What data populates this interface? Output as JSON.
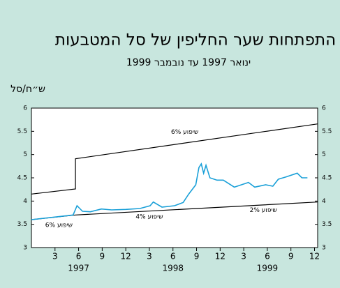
{
  "chart_data": {
    "type": "line",
    "title": "התפתחות שער החליפין של סל המטבעות",
    "subtitle": "ינואר 1997 עד נובמבר 1999",
    "ylabel": "ש״ח/סל",
    "xlim": [
      0,
      36.4
    ],
    "ylim": [
      3,
      6
    ],
    "y2lim": [
      3,
      6
    ],
    "xticks": [
      3,
      6,
      9,
      12,
      {
        "value": 15,
        "label": "3"
      },
      {
        "value": 18,
        "label": "6"
      },
      {
        "value": 21,
        "label": "9"
      },
      {
        "value": 24,
        "label": "12"
      },
      {
        "value": 27,
        "label": "3"
      },
      {
        "value": 30,
        "label": "6"
      },
      {
        "value": 33,
        "label": "9"
      },
      {
        "value": 36,
        "label": "12"
      }
    ],
    "yticks": [
      3,
      3.5,
      4,
      4.5,
      5,
      5.5,
      6
    ],
    "y2ticks": [
      3,
      3.5,
      4,
      4.5,
      5,
      5.5,
      6
    ],
    "year_groups": [
      {
        "label": "1997",
        "from": 0,
        "to": 12
      },
      {
        "label": "1998",
        "from": 12,
        "to": 24
      },
      {
        "label": "1999",
        "from": 24,
        "to": 36
      }
    ],
    "series": [
      {
        "color": "#000000",
        "x": [
          0,
          5.6,
          5.6,
          36.4
        ],
        "values": [
          4.15,
          4.26,
          4.91,
          5.66
        ]
      },
      {
        "color": "#000000",
        "x": [
          0,
          5.6,
          36.4
        ],
        "values": [
          3.6,
          3.7,
          3.98
        ]
      },
      {
        "color": "#1aa0d8",
        "x": [
          0,
          5.3,
          5.8,
          6.5,
          7.5,
          8.9,
          10.2,
          12,
          13.8,
          15.1,
          15.5,
          16.6,
          18.2,
          19.3,
          20,
          20.9,
          21.3,
          21.6,
          21.9,
          22.2,
          22.7,
          23.6,
          24.4,
          25.8,
          26.7,
          27.6,
          28.4,
          29.8,
          30.7,
          31.4,
          32.4,
          33.8,
          34.4,
          35.1
        ],
        "values": [
          3.6,
          3.7,
          3.9,
          3.78,
          3.77,
          3.83,
          3.81,
          3.82,
          3.84,
          3.9,
          3.98,
          3.87,
          3.9,
          3.97,
          4.15,
          4.35,
          4.72,
          4.8,
          4.6,
          4.77,
          4.5,
          4.45,
          4.45,
          4.3,
          4.35,
          4.4,
          4.3,
          4.35,
          4.32,
          4.47,
          4.52,
          4.6,
          4.5,
          4.5
        ]
      }
    ],
    "annotations": [
      {
        "text": "שיפוע 6%",
        "x": 19.5,
        "y": 5.48
      },
      {
        "text": "שיפוע 6%",
        "x": 3.5,
        "y": 3.48
      },
      {
        "text": "שיפוע 4%",
        "x": 15,
        "y": 3.66
      },
      {
        "text": "שיפוע 2%",
        "x": 29.5,
        "y": 3.8
      }
    ]
  }
}
